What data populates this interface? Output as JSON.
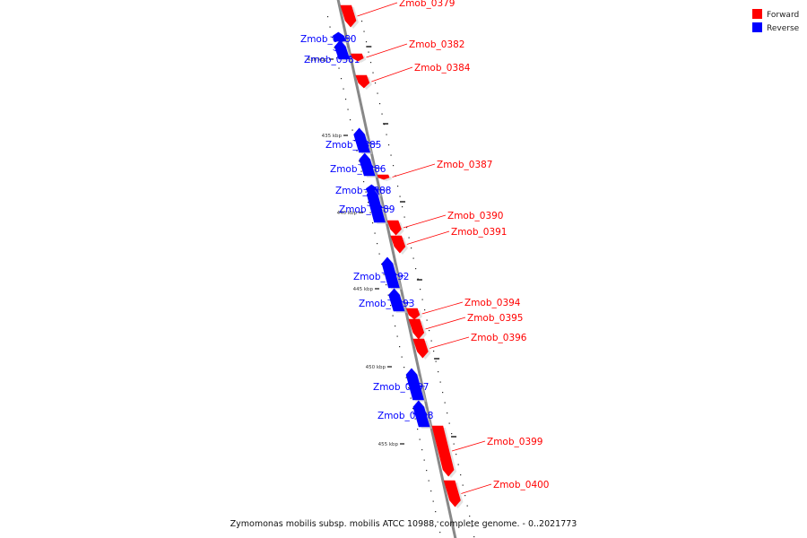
{
  "caption": "Zymomonas mobilis subsp. mobilis ATCC 10988, complete genome. - 0..2021773",
  "colors": {
    "forward": "#ff0000",
    "reverse": "#0000ff",
    "backbone": "#888888"
  },
  "legend": [
    {
      "key": "forward",
      "label": "Forward"
    },
    {
      "key": "reverse",
      "label": "Reverse"
    }
  ],
  "kbp_ticks": [
    "430 kbp",
    "435 kbp",
    "440 kbp",
    "445 kbp",
    "450 kbp",
    "455 kbp"
  ],
  "genes": [
    {
      "label": "Zmob_0379",
      "strand": "forward"
    },
    {
      "label": "Zmob_0380",
      "strand": "reverse"
    },
    {
      "label": "Zmob_0381",
      "strand": "reverse"
    },
    {
      "label": "Zmob_0382",
      "strand": "forward"
    },
    {
      "label": "Zmob_0384",
      "strand": "forward"
    },
    {
      "label": "Zmob_0385",
      "strand": "reverse"
    },
    {
      "label": "Zmob_0386",
      "strand": "reverse"
    },
    {
      "label": "Zmob_0387",
      "strand": "forward"
    },
    {
      "label": "Zmob_0388",
      "strand": "reverse"
    },
    {
      "label": "Zmob_0389",
      "strand": "reverse"
    },
    {
      "label": "Zmob_0390",
      "strand": "forward"
    },
    {
      "label": "Zmob_0391",
      "strand": "forward"
    },
    {
      "label": "Zmob_0392",
      "strand": "reverse"
    },
    {
      "label": "Zmob_0393",
      "strand": "reverse"
    },
    {
      "label": "Zmob_0394",
      "strand": "forward"
    },
    {
      "label": "Zmob_0395",
      "strand": "forward"
    },
    {
      "label": "Zmob_0396",
      "strand": "forward"
    },
    {
      "label": "Zmob_0397",
      "strand": "reverse"
    },
    {
      "label": "Zmob_0398",
      "strand": "reverse"
    },
    {
      "label": "Zmob_0399",
      "strand": "forward"
    },
    {
      "label": "Zmob_0400",
      "strand": "forward"
    }
  ]
}
